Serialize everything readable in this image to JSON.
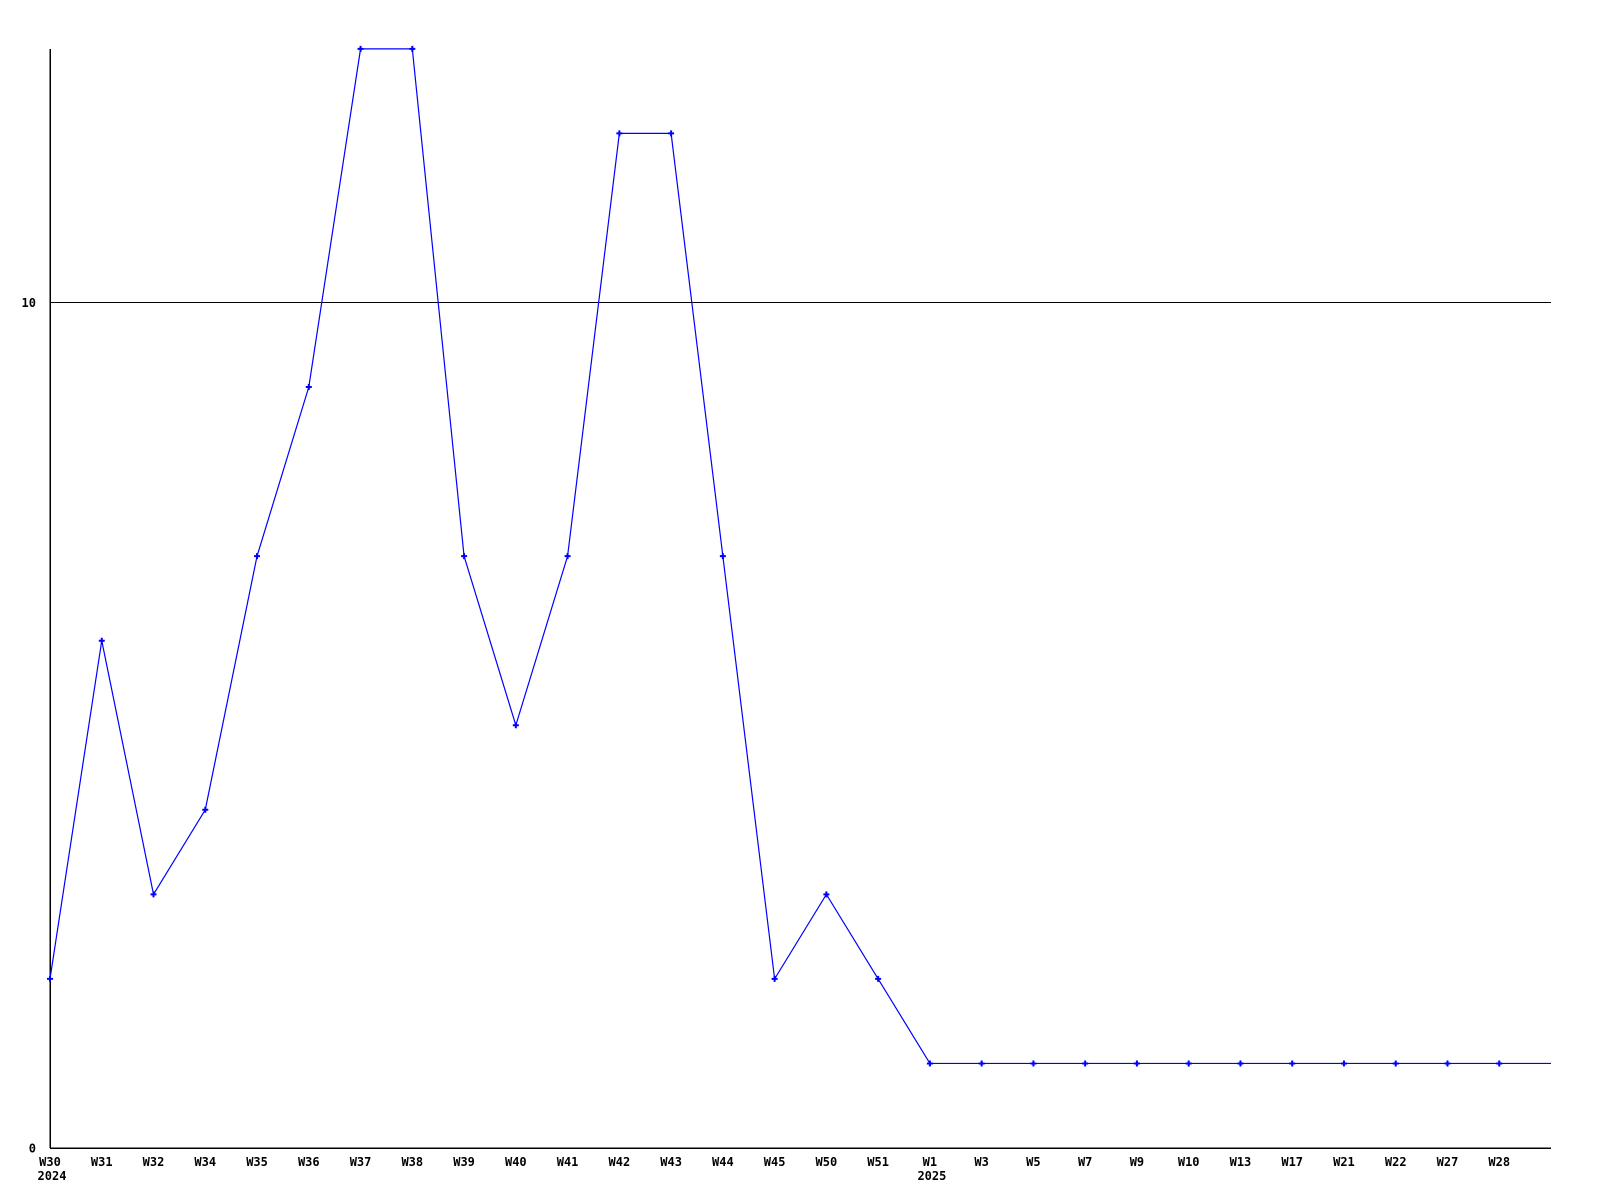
{
  "chart_data": {
    "type": "line",
    "title": "",
    "xlabel": "",
    "ylabel": "",
    "categories": [
      "W30",
      "W31",
      "W32",
      "W34",
      "W35",
      "W36",
      "W37",
      "W38",
      "W39",
      "W40",
      "W41",
      "W42",
      "W43",
      "W44",
      "W45",
      "W50",
      "W51",
      "W1",
      "W3",
      "W5",
      "W7",
      "W9",
      "W10",
      "W13",
      "W17",
      "W21",
      "W22",
      "W27",
      "W28",
      ""
    ],
    "values": [
      2,
      6,
      3,
      4,
      7,
      9,
      13,
      13,
      7,
      5,
      7,
      12,
      12,
      7,
      2,
      3,
      2,
      1,
      1,
      1,
      1,
      1,
      1,
      1,
      1,
      1,
      1,
      1,
      1,
      1
    ],
    "x_year_labels": [
      {
        "index": 0,
        "label": "2024"
      },
      {
        "index": 17,
        "label": "2025"
      }
    ],
    "yticks": [
      {
        "value": 0,
        "label": "0"
      },
      {
        "value": 10,
        "label": "10"
      }
    ],
    "ylim": [
      0,
      13
    ],
    "gridlines": [
      10
    ],
    "legend": "none",
    "marker": "plus",
    "line_color": "#0000ff",
    "axis_color": "#000000",
    "text_color": "#000000",
    "background": "#ffffff"
  }
}
